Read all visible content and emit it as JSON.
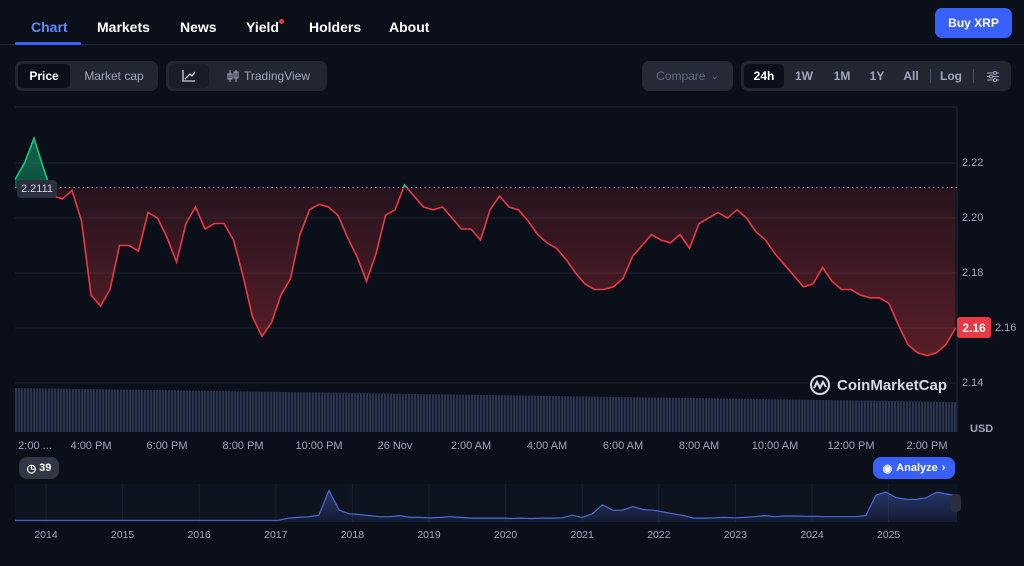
{
  "tabs": [
    {
      "label": "Chart",
      "active": true
    },
    {
      "label": "Markets"
    },
    {
      "label": "News"
    },
    {
      "label": "Yield",
      "notification_dot": true
    },
    {
      "label": "Holders"
    },
    {
      "label": "About"
    }
  ],
  "buy_button": "Buy XRP",
  "chart_mode": {
    "options": [
      "Price",
      "Market cap"
    ],
    "selected": "Price"
  },
  "chart_style": {
    "line_icon": "line-chart-icon",
    "tradingview_label": "TradingView",
    "tradingview_icon": "candlestick-icon"
  },
  "compare_label": "Compare",
  "ranges": {
    "options": [
      "24h",
      "1W",
      "1M",
      "1Y",
      "All"
    ],
    "selected": "24h",
    "log_label": "Log",
    "settings_icon": "sliders-icon"
  },
  "colors": {
    "up": "#16c784",
    "down": "#ea3943",
    "accent": "#3861fb",
    "volume": "#2b3550",
    "overview": "#4a6bd6"
  },
  "chart_data": {
    "type": "line",
    "title": "",
    "baseline_chart": true,
    "reference_price": 2.2111,
    "reference_label": "2.2111",
    "current_price_label": "2.16",
    "y_unit": "USD",
    "ylim": [
      2.13,
      2.24
    ],
    "yticks": [
      "2.14",
      "2.16",
      "2.18",
      "2.20",
      "2.22"
    ],
    "ytick_values": [
      2.14,
      2.16,
      2.18,
      2.2,
      2.22
    ],
    "start_time": "25 Nov 2:00 PM",
    "interval_minutes": 15,
    "xticks": [
      "2:00 ...",
      "4:00 PM",
      "6:00 PM",
      "8:00 PM",
      "10:00 PM",
      "26 Nov",
      "2:00 AM",
      "4:00 AM",
      "6:00 AM",
      "8:00 AM",
      "10:00 AM",
      "12:00 PM",
      "2:00 PM"
    ],
    "xtick_hours": [
      0,
      2,
      4,
      6,
      8,
      10,
      12,
      14,
      16,
      18,
      20,
      22,
      24
    ],
    "values": [
      2.214,
      2.22,
      2.229,
      2.218,
      2.208,
      2.207,
      2.21,
      2.199,
      2.172,
      2.168,
      2.174,
      2.19,
      2.19,
      2.188,
      2.202,
      2.2,
      2.193,
      2.184,
      2.198,
      2.204,
      2.196,
      2.198,
      2.198,
      2.192,
      2.179,
      2.164,
      2.157,
      2.162,
      2.172,
      2.178,
      2.194,
      2.203,
      2.205,
      2.204,
      2.201,
      2.193,
      2.186,
      2.177,
      2.187,
      2.201,
      2.203,
      2.212,
      2.208,
      2.204,
      2.203,
      2.204,
      2.2,
      2.196,
      2.196,
      2.192,
      2.203,
      2.208,
      2.204,
      2.203,
      2.199,
      2.194,
      2.191,
      2.189,
      2.185,
      2.18,
      2.176,
      2.174,
      2.174,
      2.175,
      2.178,
      2.186,
      2.19,
      2.194,
      2.192,
      2.191,
      2.194,
      2.189,
      2.198,
      2.2,
      2.202,
      2.2,
      2.203,
      2.2,
      2.195,
      2.192,
      2.187,
      2.183,
      2.179,
      2.175,
      2.176,
      2.182,
      2.177,
      2.174,
      2.174,
      2.172,
      2.171,
      2.171,
      2.169,
      2.161,
      2.154,
      2.151,
      2.15,
      2.151,
      2.154,
      2.16
    ],
    "overview": {
      "xticks": [
        "2014",
        "2015",
        "2016",
        "2017",
        "2018",
        "2019",
        "2020",
        "2021",
        "2022",
        "2023",
        "2024",
        "2025"
      ],
      "relative_values": [
        0.02,
        0.02,
        0.02,
        0.02,
        0.02,
        0.02,
        0.02,
        0.02,
        0.02,
        0.02,
        0.02,
        0.02,
        0.02,
        0.02,
        0.02,
        0.02,
        0.02,
        0.02,
        0.02,
        0.02,
        0.02,
        0.02,
        0.02,
        0.02,
        0.02,
        0.02,
        0.02,
        0.08,
        0.1,
        0.12,
        0.16,
        0.85,
        0.3,
        0.2,
        0.18,
        0.15,
        0.12,
        0.12,
        0.15,
        0.1,
        0.1,
        0.09,
        0.1,
        0.12,
        0.1,
        0.08,
        0.08,
        0.08,
        0.08,
        0.07,
        0.08,
        0.07,
        0.08,
        0.08,
        0.09,
        0.16,
        0.1,
        0.2,
        0.45,
        0.3,
        0.3,
        0.4,
        0.32,
        0.3,
        0.25,
        0.2,
        0.15,
        0.08,
        0.08,
        0.09,
        0.1,
        0.09,
        0.1,
        0.12,
        0.15,
        0.12,
        0.14,
        0.14,
        0.13,
        0.13,
        0.12,
        0.12,
        0.12,
        0.12,
        0.15,
        0.72,
        0.8,
        0.65,
        0.6,
        0.6,
        0.65,
        0.8,
        0.75,
        0.7
      ]
    }
  },
  "watermark": "CoinMarketCap",
  "history_badge": "39",
  "analyze_label": "Analyze",
  "currency": "USD"
}
